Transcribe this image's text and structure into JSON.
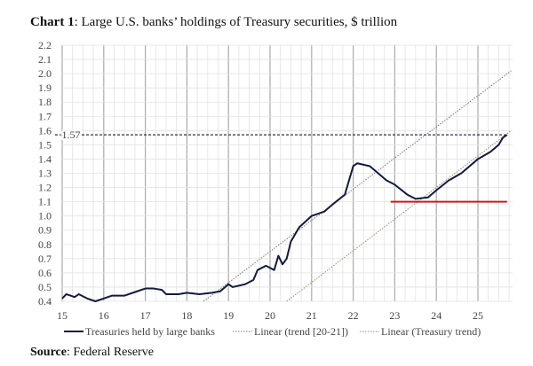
{
  "title_bold": "Chart 1",
  "title_rest": ": Large U.S. banks’ holdings of Treasury securities, $ trillion",
  "source_bold": "Source",
  "source_rest": ": Federal Reserve",
  "chart_data": {
    "type": "line",
    "title": "Chart 1: Large U.S. banks’ holdings of Treasury securities, $ trillion",
    "xlim": [
      15,
      25.8
    ],
    "ylim": [
      0.4,
      2.2
    ],
    "x_ticks": [
      "15",
      "16",
      "17",
      "18",
      "19",
      "20",
      "21",
      "22",
      "23",
      "24",
      "25"
    ],
    "y_ticks": [
      "0.4",
      "0.5",
      "0.6",
      "0.7",
      "0.8",
      "0.9",
      "1.0",
      "1.1",
      "1.2",
      "1.3",
      "1.4",
      "1.5",
      "1.6",
      "1.7",
      "1.8",
      "1.9",
      "2.0",
      "2.1",
      "2.2"
    ],
    "grid": true,
    "legend_placement": "bottom",
    "annotation": {
      "label": "1.57",
      "value": 1.57
    },
    "reference_line": {
      "value": 1.1,
      "x_start": 22.9,
      "x_end": 25.7,
      "color": "#d0191b"
    },
    "series": [
      {
        "name": "Treasuries held by large banks",
        "color": "#141a3c",
        "x": [
          15.0,
          15.1,
          15.3,
          15.4,
          15.6,
          15.8,
          16.0,
          16.2,
          16.5,
          16.7,
          17.0,
          17.2,
          17.4,
          17.5,
          17.8,
          18.0,
          18.3,
          18.6,
          18.8,
          19.0,
          19.1,
          19.4,
          19.6,
          19.7,
          19.9,
          20.1,
          20.2,
          20.3,
          20.4,
          20.5,
          20.7,
          21.0,
          21.3,
          21.5,
          21.8,
          21.9,
          22.0,
          22.1,
          22.4,
          22.6,
          22.8,
          23.0,
          23.3,
          23.5,
          23.8,
          24.0,
          24.3,
          24.6,
          24.8,
          25.0,
          25.3,
          25.5,
          25.6,
          25.7
        ],
        "y": [
          0.42,
          0.45,
          0.43,
          0.45,
          0.42,
          0.4,
          0.42,
          0.44,
          0.44,
          0.46,
          0.49,
          0.49,
          0.48,
          0.45,
          0.45,
          0.46,
          0.45,
          0.46,
          0.47,
          0.52,
          0.5,
          0.52,
          0.55,
          0.62,
          0.65,
          0.62,
          0.72,
          0.66,
          0.7,
          0.82,
          0.92,
          1.0,
          1.03,
          1.08,
          1.15,
          1.25,
          1.35,
          1.37,
          1.35,
          1.3,
          1.25,
          1.22,
          1.15,
          1.12,
          1.13,
          1.18,
          1.25,
          1.3,
          1.35,
          1.4,
          1.45,
          1.5,
          1.55,
          1.57
        ]
      },
      {
        "name": "Linear (trend [20-21])",
        "color": "#777777",
        "x": [
          18.4,
          25.8
        ],
        "y": [
          0.4,
          2.02
        ]
      },
      {
        "name": "Linear (Treasury trend)",
        "color": "#9a8a70",
        "x": [
          20.4,
          25.8
        ],
        "y": [
          0.4,
          1.6
        ]
      }
    ]
  }
}
